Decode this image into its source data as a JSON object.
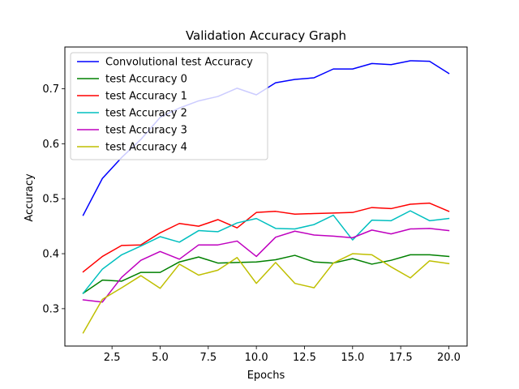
{
  "chart_data": {
    "type": "line",
    "title": "Validation Accuracy Graph",
    "xlabel": "Epochs",
    "ylabel": "Accuracy",
    "xlim": [
      0.05,
      20.95
    ],
    "ylim": [
      0.232,
      0.776
    ],
    "x_ticks": [
      2.5,
      5.0,
      7.5,
      10.0,
      12.5,
      15.0,
      17.5,
      20.0
    ],
    "x_tick_labels": [
      "2.5",
      "5.0",
      "7.5",
      "10.0",
      "12.5",
      "15.0",
      "17.5",
      "20.0"
    ],
    "y_ticks": [
      0.3,
      0.4,
      0.5,
      0.6,
      0.7
    ],
    "y_tick_labels": [
      "0.3",
      "0.4",
      "0.5",
      "0.6",
      "0.7"
    ],
    "grid": false,
    "legend_position": "top-left",
    "x": [
      1,
      2,
      3,
      4,
      5,
      6,
      7,
      8,
      9,
      10,
      11,
      12,
      13,
      14,
      15,
      16,
      17,
      18,
      19,
      20
    ],
    "series": [
      {
        "name": "Convolutional test Accuracy",
        "color": "#0000ff",
        "values": [
          0.47,
          0.537,
          0.575,
          0.608,
          0.648,
          0.665,
          0.678,
          0.686,
          0.701,
          0.689,
          0.711,
          0.717,
          0.72,
          0.736,
          0.736,
          0.746,
          0.744,
          0.751,
          0.75,
          0.728
        ]
      },
      {
        "name": "test Accuracy 0",
        "color": "#008000",
        "values": [
          0.328,
          0.352,
          0.35,
          0.366,
          0.366,
          0.385,
          0.394,
          0.383,
          0.384,
          0.385,
          0.389,
          0.397,
          0.385,
          0.383,
          0.391,
          0.381,
          0.388,
          0.398,
          0.398,
          0.395
        ]
      },
      {
        "name": "test Accuracy 1",
        "color": "#ff0000",
        "values": [
          0.367,
          0.395,
          0.415,
          0.416,
          0.438,
          0.455,
          0.45,
          0.462,
          0.447,
          0.475,
          0.477,
          0.472,
          0.473,
          0.474,
          0.475,
          0.484,
          0.482,
          0.49,
          0.492,
          0.477
        ]
      },
      {
        "name": "test Accuracy 2",
        "color": "#00bfbf",
        "values": [
          0.328,
          0.372,
          0.398,
          0.414,
          0.431,
          0.421,
          0.442,
          0.44,
          0.456,
          0.464,
          0.446,
          0.445,
          0.453,
          0.47,
          0.425,
          0.461,
          0.46,
          0.478,
          0.46,
          0.464
        ]
      },
      {
        "name": "test Accuracy 3",
        "color": "#bf00bf",
        "values": [
          0.316,
          0.312,
          0.357,
          0.388,
          0.404,
          0.39,
          0.416,
          0.416,
          0.423,
          0.395,
          0.43,
          0.441,
          0.434,
          0.432,
          0.429,
          0.443,
          0.436,
          0.445,
          0.446,
          0.442
        ]
      },
      {
        "name": "test Accuracy 4",
        "color": "#bfbf00",
        "values": [
          0.256,
          0.317,
          0.338,
          0.36,
          0.337,
          0.381,
          0.361,
          0.37,
          0.393,
          0.346,
          0.384,
          0.346,
          0.338,
          0.383,
          0.4,
          0.398,
          0.376,
          0.356,
          0.387,
          0.382
        ]
      }
    ]
  }
}
